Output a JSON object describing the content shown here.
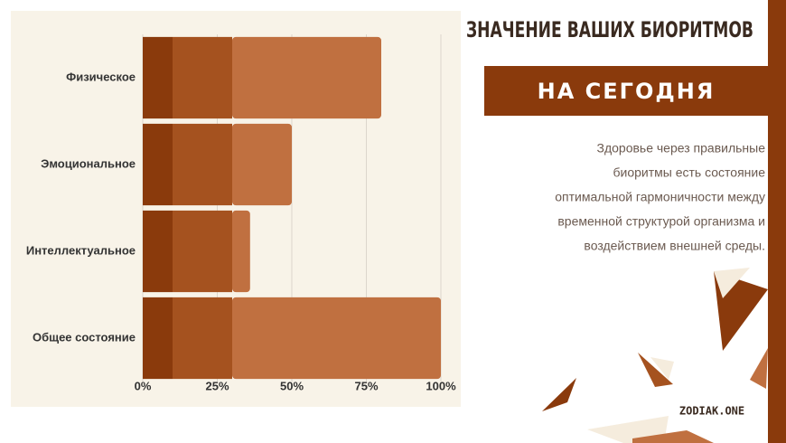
{
  "chart_data": {
    "type": "bar",
    "orientation": "horizontal",
    "categories": [
      "Физическое",
      "Эмоциональное",
      "Интеллектуальное",
      "Общее состояние"
    ],
    "series": [
      {
        "color": "#8a3a0c",
        "values": [
          10,
          10,
          10,
          10
        ]
      },
      {
        "color": "#a5521f",
        "values": [
          20,
          20,
          20,
          20
        ]
      },
      {
        "color": "#c07040",
        "values": [
          50,
          20,
          6,
          70
        ]
      }
    ],
    "xlim": [
      0,
      100
    ],
    "xticks": [
      {
        "value": 0,
        "label": "0%"
      },
      {
        "value": 25,
        "label": "25%"
      },
      {
        "value": 50,
        "label": "50%"
      },
      {
        "value": 75,
        "label": "75%"
      },
      {
        "value": 100,
        "label": "100%"
      }
    ],
    "grid": true
  },
  "header": {
    "title": "ЗНАЧЕНИЕ ВАШИХ БИОРИТМОВ",
    "subtitle": "НА СЕГОДНЯ"
  },
  "description": [
    "Здоровье через правильные",
    "биоритмы есть состояние",
    "оптимальной гармоничности между",
    "временной структурой организма и",
    "воздействием внешней среды."
  ],
  "footer": {
    "brand": "ZODIAK.ONE"
  }
}
